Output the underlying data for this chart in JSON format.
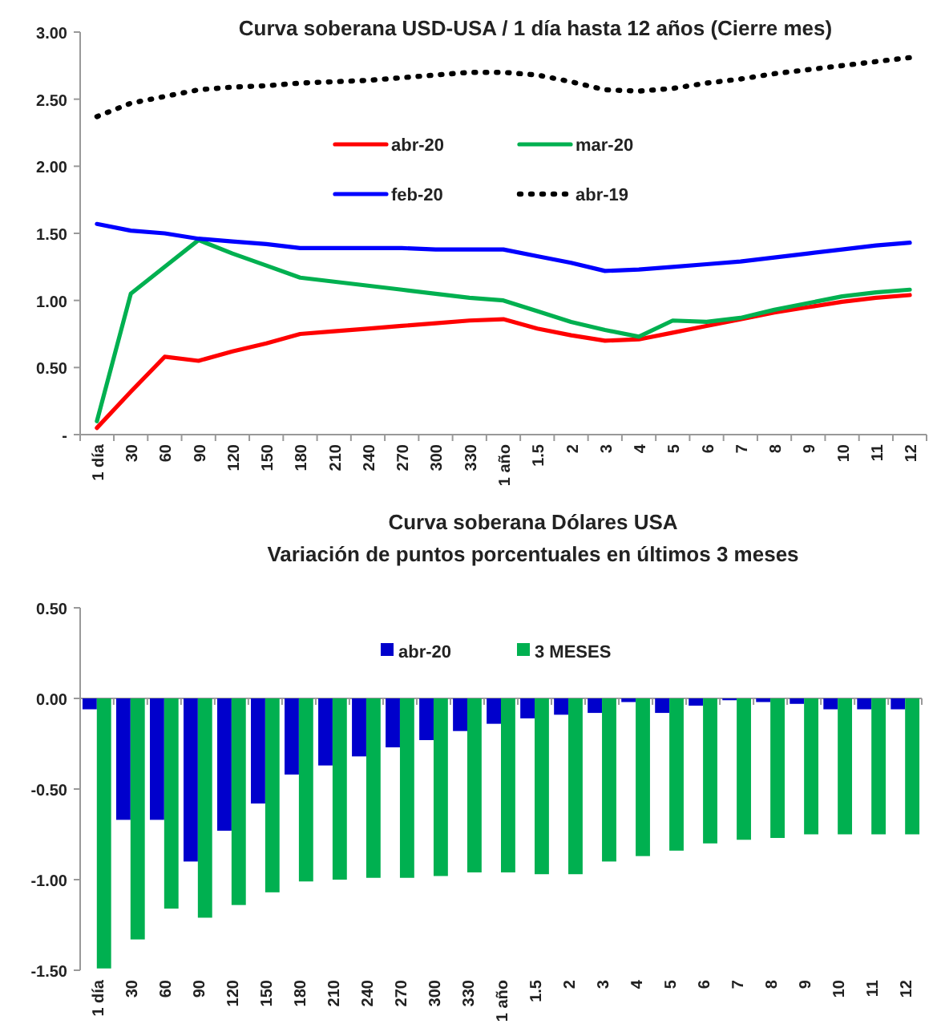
{
  "chart_data": [
    {
      "type": "line",
      "title": "Curva soberana USD-USA  / 1 día hasta 12 años (Cierre mes)",
      "categories": [
        "1 día",
        "30",
        "60",
        "90",
        "120",
        "150",
        "180",
        "210",
        "240",
        "270",
        "300",
        "330",
        "1 año",
        "1.5",
        "2",
        "3",
        "4",
        "5",
        "6",
        "7",
        "8",
        "9",
        "10",
        "11",
        "12"
      ],
      "series": [
        {
          "name": "abr-20",
          "color": "#ff0000",
          "values": [
            0.05,
            0.32,
            0.58,
            0.55,
            0.62,
            0.68,
            0.75,
            0.77,
            0.79,
            0.81,
            0.83,
            0.85,
            0.86,
            0.79,
            0.74,
            0.7,
            0.71,
            0.76,
            0.81,
            0.86,
            0.91,
            0.95,
            0.99,
            1.02,
            1.04
          ]
        },
        {
          "name": "mar-20",
          "color": "#00b050",
          "values": [
            0.1,
            1.05,
            1.25,
            1.45,
            1.35,
            1.26,
            1.17,
            1.14,
            1.11,
            1.08,
            1.05,
            1.02,
            1.0,
            0.92,
            0.84,
            0.78,
            0.73,
            0.85,
            0.84,
            0.87,
            0.93,
            0.98,
            1.03,
            1.06,
            1.08
          ]
        },
        {
          "name": "feb-20",
          "color": "#0000ff",
          "values": [
            1.57,
            1.52,
            1.5,
            1.46,
            1.44,
            1.42,
            1.39,
            1.39,
            1.39,
            1.39,
            1.38,
            1.38,
            1.38,
            1.33,
            1.28,
            1.22,
            1.23,
            1.25,
            1.27,
            1.29,
            1.32,
            1.35,
            1.38,
            1.41,
            1.43
          ]
        },
        {
          "name": "abr-19",
          "color": "#000000",
          "line_style": "dotted",
          "values": [
            2.37,
            2.47,
            2.52,
            2.57,
            2.59,
            2.6,
            2.62,
            2.63,
            2.64,
            2.66,
            2.68,
            2.7,
            2.7,
            2.68,
            2.63,
            2.57,
            2.56,
            2.58,
            2.62,
            2.65,
            2.69,
            2.72,
            2.75,
            2.78,
            2.81
          ]
        }
      ],
      "ylim": [
        0,
        3
      ],
      "yticks": [
        {
          "value": 0,
          "label": "-"
        },
        {
          "value": 0.5,
          "label": "0.50"
        },
        {
          "value": 1,
          "label": "1.00"
        },
        {
          "value": 1.5,
          "label": "1.50"
        },
        {
          "value": 2,
          "label": "2.00"
        },
        {
          "value": 2.5,
          "label": "2.50"
        },
        {
          "value": 3,
          "label": "3.00"
        }
      ],
      "legend": "top"
    },
    {
      "type": "bar",
      "title": "Curva soberana Dólares USA",
      "subtitle": "Variación de puntos porcentuales en últimos 3 meses",
      "categories": [
        "1 día",
        "30",
        "60",
        "90",
        "120",
        "150",
        "180",
        "210",
        "240",
        "270",
        "300",
        "330",
        "1 año",
        "1.5",
        "2",
        "3",
        "4",
        "5",
        "6",
        "7",
        "8",
        "9",
        "10",
        "11",
        "12"
      ],
      "series": [
        {
          "name": "abr-20",
          "color": "#0000cc",
          "values": [
            -0.06,
            -0.67,
            -0.67,
            -0.9,
            -0.73,
            -0.58,
            -0.42,
            -0.37,
            -0.32,
            -0.27,
            -0.23,
            -0.18,
            -0.14,
            -0.11,
            -0.09,
            -0.08,
            -0.02,
            -0.08,
            -0.04,
            -0.01,
            -0.02,
            -0.03,
            -0.06,
            -0.06,
            -0.06
          ]
        },
        {
          "name": "3 MESES",
          "color": "#00b050",
          "values": [
            -1.49,
            -1.33,
            -1.16,
            -1.21,
            -1.14,
            -1.07,
            -1.01,
            -1.0,
            -0.99,
            -0.99,
            -0.98,
            -0.96,
            -0.96,
            -0.97,
            -0.97,
            -0.9,
            -0.87,
            -0.84,
            -0.8,
            -0.78,
            -0.77,
            -0.75,
            -0.75,
            -0.75,
            -0.75
          ]
        }
      ],
      "ylim": [
        -1.5,
        0.5
      ],
      "yticks": [
        {
          "value": -1.5,
          "label": "-1.50"
        },
        {
          "value": -1,
          "label": "-1.00"
        },
        {
          "value": -0.5,
          "label": "-0.50"
        },
        {
          "value": 0,
          "label": "0.00"
        },
        {
          "value": 0.5,
          "label": "0.50"
        }
      ],
      "legend": "top"
    }
  ]
}
